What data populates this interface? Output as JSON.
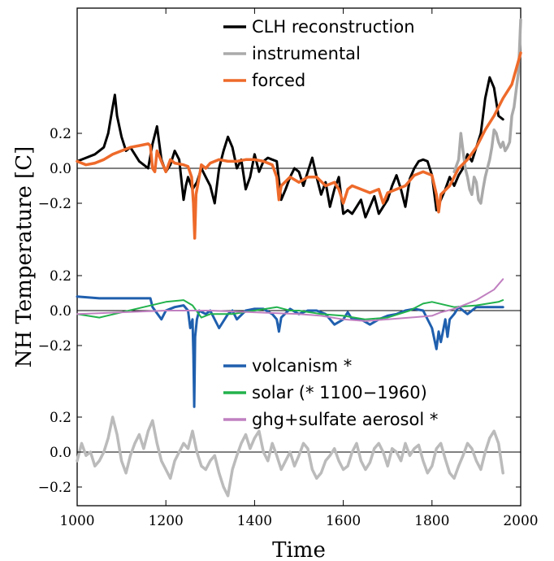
{
  "chart_data": {
    "type": "line",
    "xlabel": "Time",
    "ylabel": "NH Temperature [C]",
    "xlim": [
      1000,
      2000
    ],
    "xticks": [
      1000,
      1200,
      1400,
      1600,
      1800,
      2000
    ],
    "panels": [
      {
        "name": "top",
        "ylim": [
          -0.35,
          0.65
        ],
        "yticks": [
          0.2,
          0.0,
          -0.2
        ],
        "ytick_labels": [
          "0.2",
          "0.0",
          "−0.2"
        ],
        "legend": {
          "position": "top-center"
        },
        "series": [
          {
            "name": "CLH reconstruction",
            "color": "#000000",
            "width": 3,
            "x": [
              1000,
              1020,
              1040,
              1060,
              1070,
              1080,
              1085,
              1090,
              1100,
              1110,
              1120,
              1140,
              1150,
              1160,
              1170,
              1180,
              1190,
              1200,
              1210,
              1220,
              1230,
              1240,
              1245,
              1250,
              1260,
              1270,
              1280,
              1290,
              1300,
              1310,
              1320,
              1330,
              1340,
              1350,
              1360,
              1370,
              1380,
              1390,
              1400,
              1410,
              1420,
              1430,
              1440,
              1450,
              1460,
              1470,
              1480,
              1490,
              1500,
              1510,
              1520,
              1530,
              1540,
              1550,
              1560,
              1570,
              1580,
              1590,
              1600,
              1610,
              1620,
              1630,
              1640,
              1650,
              1660,
              1670,
              1680,
              1690,
              1700,
              1710,
              1720,
              1730,
              1740,
              1750,
              1760,
              1770,
              1780,
              1790,
              1800,
              1810,
              1820,
              1830,
              1840,
              1850,
              1860,
              1870,
              1880,
              1890,
              1900,
              1910,
              1920,
              1930,
              1940,
              1950,
              1960
            ],
            "y": [
              0.04,
              0.06,
              0.08,
              0.12,
              0.2,
              0.35,
              0.42,
              0.3,
              0.18,
              0.1,
              0.12,
              0.04,
              0.02,
              0.0,
              0.14,
              0.24,
              0.05,
              -0.02,
              0.02,
              0.1,
              0.05,
              -0.18,
              -0.1,
              -0.05,
              -0.12,
              -0.08,
              0.0,
              -0.05,
              -0.1,
              -0.2,
              0.0,
              0.1,
              0.18,
              0.12,
              0.0,
              0.05,
              -0.12,
              -0.05,
              0.08,
              -0.02,
              0.04,
              0.06,
              0.05,
              0.04,
              -0.18,
              -0.12,
              -0.05,
              0.0,
              -0.02,
              -0.1,
              -0.02,
              0.06,
              -0.05,
              -0.15,
              -0.08,
              -0.22,
              -0.12,
              -0.05,
              -0.26,
              -0.24,
              -0.26,
              -0.22,
              -0.18,
              -0.28,
              -0.22,
              -0.16,
              -0.26,
              -0.22,
              -0.18,
              -0.1,
              -0.04,
              -0.12,
              -0.22,
              -0.06,
              0.0,
              0.04,
              0.05,
              0.04,
              -0.04,
              -0.24,
              -0.18,
              -0.12,
              -0.05,
              -0.1,
              -0.04,
              0.0,
              0.08,
              0.04,
              0.12,
              0.2,
              0.4,
              0.52,
              0.46,
              0.3,
              0.28
            ]
          },
          {
            "name": "instrumental",
            "color": "#aaaaaa",
            "width": 3.5,
            "x": [
              1850,
              1860,
              1865,
              1870,
              1875,
              1880,
              1885,
              1890,
              1895,
              1900,
              1905,
              1910,
              1915,
              1920,
              1925,
              1930,
              1935,
              1940,
              1945,
              1950,
              1955,
              1960,
              1965,
              1970,
              1975,
              1980,
              1985,
              1990,
              1995,
              2000
            ],
            "y": [
              -0.02,
              0.05,
              0.2,
              0.1,
              0.0,
              -0.05,
              -0.12,
              -0.15,
              -0.05,
              -0.08,
              -0.18,
              -0.2,
              -0.12,
              -0.05,
              0.0,
              0.05,
              0.12,
              0.22,
              0.2,
              0.15,
              0.12,
              0.15,
              0.1,
              0.12,
              0.15,
              0.3,
              0.35,
              0.45,
              0.55,
              0.85
            ]
          },
          {
            "name": "forced",
            "color": "#ee6a2a",
            "width": 3.5,
            "x": [
              1000,
              1020,
              1040,
              1060,
              1080,
              1100,
              1120,
              1140,
              1160,
              1165,
              1170,
              1175,
              1180,
              1190,
              1200,
              1210,
              1220,
              1240,
              1250,
              1258,
              1262,
              1265,
              1268,
              1275,
              1280,
              1290,
              1300,
              1320,
              1340,
              1360,
              1380,
              1400,
              1420,
              1440,
              1450,
              1455,
              1460,
              1480,
              1500,
              1520,
              1540,
              1560,
              1580,
              1590,
              1600,
              1610,
              1620,
              1640,
              1660,
              1680,
              1690,
              1700,
              1720,
              1740,
              1760,
              1780,
              1800,
              1810,
              1815,
              1820,
              1840,
              1860,
              1880,
              1900,
              1920,
              1940,
              1960,
              1980,
              2000
            ],
            "y": [
              0.04,
              0.02,
              0.03,
              0.05,
              0.08,
              0.1,
              0.12,
              0.13,
              0.14,
              0.13,
              0.0,
              -0.02,
              0.1,
              0.04,
              -0.02,
              0.05,
              0.03,
              0.02,
              0.01,
              -0.05,
              -0.2,
              -0.4,
              -0.15,
              -0.05,
              0.02,
              0.0,
              0.03,
              0.05,
              0.04,
              0.04,
              0.05,
              0.05,
              0.04,
              0.02,
              -0.05,
              -0.18,
              -0.1,
              -0.05,
              -0.08,
              -0.05,
              -0.05,
              -0.1,
              -0.08,
              -0.12,
              -0.2,
              -0.12,
              -0.1,
              -0.12,
              -0.14,
              -0.12,
              -0.2,
              -0.14,
              -0.12,
              -0.1,
              -0.04,
              -0.02,
              -0.04,
              -0.15,
              -0.25,
              -0.15,
              -0.1,
              0.0,
              0.05,
              0.12,
              0.22,
              0.3,
              0.4,
              0.48,
              0.66
            ]
          }
        ]
      },
      {
        "name": "middle",
        "ylim": [
          -0.35,
          0.25
        ],
        "yticks": [
          0.2,
          0.0,
          -0.2
        ],
        "ytick_labels": [
          "0.2",
          "0.0",
          "−0.2"
        ],
        "legend": {
          "position": "bottom-center"
        },
        "series": [
          {
            "name": "volcanism *",
            "color": "#1f5fae",
            "width": 3,
            "x": [
              1000,
              1050,
              1100,
              1150,
              1165,
              1170,
              1190,
              1200,
              1220,
              1240,
              1250,
              1255,
              1260,
              1262,
              1264,
              1266,
              1270,
              1275,
              1290,
              1300,
              1320,
              1340,
              1350,
              1360,
              1380,
              1400,
              1420,
              1440,
              1450,
              1455,
              1460,
              1480,
              1500,
              1520,
              1540,
              1560,
              1580,
              1600,
              1610,
              1620,
              1640,
              1660,
              1680,
              1700,
              1720,
              1740,
              1760,
              1780,
              1800,
              1810,
              1815,
              1820,
              1830,
              1835,
              1840,
              1850,
              1860,
              1880,
              1900,
              1920,
              1940,
              1960
            ],
            "y": [
              0.08,
              0.07,
              0.07,
              0.07,
              0.07,
              0.02,
              -0.05,
              0.0,
              0.02,
              0.03,
              0.0,
              -0.1,
              -0.05,
              -0.25,
              -0.55,
              -0.15,
              -0.05,
              0.0,
              -0.02,
              0.0,
              -0.1,
              -0.02,
              0.0,
              -0.05,
              0.0,
              0.01,
              0.01,
              -0.02,
              -0.05,
              -0.12,
              -0.04,
              0.01,
              -0.02,
              0.0,
              0.0,
              -0.02,
              -0.08,
              -0.05,
              -0.01,
              -0.05,
              -0.05,
              -0.08,
              -0.05,
              -0.03,
              -0.02,
              0.0,
              0.01,
              0.0,
              -0.1,
              -0.22,
              -0.12,
              -0.18,
              -0.05,
              -0.15,
              -0.05,
              -0.02,
              0.02,
              -0.02,
              0.02,
              0.02,
              0.02,
              0.02
            ]
          },
          {
            "name": "solar (* 1100−1960)",
            "color": "#22b24c",
            "width": 2,
            "x": [
              1000,
              1050,
              1100,
              1150,
              1200,
              1240,
              1260,
              1280,
              1300,
              1350,
              1400,
              1450,
              1480,
              1500,
              1550,
              1600,
              1650,
              1700,
              1750,
              1780,
              1800,
              1850,
              1900,
              1950,
              1960
            ],
            "y": [
              -0.02,
              -0.04,
              -0.01,
              0.02,
              0.05,
              0.06,
              0.03,
              -0.04,
              -0.02,
              -0.02,
              0.0,
              0.02,
              0.0,
              0.0,
              -0.02,
              -0.03,
              -0.05,
              -0.04,
              0.0,
              0.04,
              0.05,
              0.02,
              0.03,
              0.05,
              0.06
            ]
          },
          {
            "name": "ghg+sulfate aerosol *",
            "color": "#c080c0",
            "width": 2,
            "x": [
              1000,
              1100,
              1200,
              1300,
              1400,
              1500,
              1550,
              1600,
              1650,
              1700,
              1750,
              1800,
              1820,
              1850,
              1880,
              1900,
              1920,
              1940,
              1960
            ],
            "y": [
              -0.02,
              -0.01,
              0.0,
              0.0,
              -0.01,
              -0.02,
              -0.03,
              -0.05,
              -0.06,
              -0.05,
              -0.04,
              -0.03,
              -0.01,
              0.01,
              0.04,
              0.06,
              0.09,
              0.12,
              0.18
            ]
          }
        ]
      },
      {
        "name": "bottom",
        "ylim": [
          -0.3,
          0.2
        ],
        "yticks": [
          0.2,
          0.0,
          -0.2
        ],
        "ytick_labels": [
          "0.2",
          "0.0",
          "−0.2"
        ],
        "series": [
          {
            "name": "",
            "color": "#bbbbbb",
            "width": 3.5,
            "x": [
              1000,
              1010,
              1020,
              1030,
              1040,
              1050,
              1060,
              1070,
              1080,
              1090,
              1100,
              1110,
              1120,
              1130,
              1140,
              1150,
              1160,
              1170,
              1180,
              1190,
              1200,
              1210,
              1220,
              1230,
              1240,
              1250,
              1260,
              1270,
              1280,
              1290,
              1300,
              1310,
              1320,
              1330,
              1340,
              1350,
              1360,
              1370,
              1380,
              1390,
              1400,
              1410,
              1420,
              1430,
              1440,
              1450,
              1460,
              1470,
              1480,
              1490,
              1500,
              1510,
              1520,
              1530,
              1540,
              1550,
              1560,
              1570,
              1580,
              1590,
              1600,
              1610,
              1620,
              1630,
              1640,
              1650,
              1660,
              1670,
              1680,
              1690,
              1700,
              1710,
              1720,
              1730,
              1740,
              1750,
              1760,
              1770,
              1780,
              1790,
              1800,
              1810,
              1820,
              1830,
              1840,
              1850,
              1860,
              1870,
              1880,
              1890,
              1900,
              1910,
              1920,
              1930,
              1940,
              1950,
              1960
            ],
            "y": [
              -0.05,
              0.05,
              -0.02,
              0.0,
              -0.08,
              -0.05,
              0.0,
              0.08,
              0.2,
              0.1,
              -0.05,
              -0.12,
              -0.02,
              0.05,
              0.1,
              0.02,
              0.12,
              0.18,
              0.05,
              -0.05,
              -0.1,
              -0.15,
              -0.05,
              0.0,
              0.05,
              0.02,
              0.12,
              0.0,
              -0.08,
              -0.1,
              -0.05,
              -0.02,
              -0.12,
              -0.2,
              -0.25,
              -0.1,
              -0.02,
              0.05,
              0.1,
              0.02,
              0.08,
              0.12,
              0.0,
              -0.05,
              0.05,
              -0.02,
              -0.1,
              -0.05,
              0.0,
              -0.08,
              -0.02,
              0.05,
              0.02,
              -0.1,
              -0.15,
              -0.12,
              -0.05,
              -0.02,
              0.02,
              -0.05,
              -0.1,
              -0.08,
              0.0,
              0.05,
              -0.05,
              -0.1,
              -0.06,
              0.02,
              0.05,
              0.0,
              -0.08,
              0.02,
              0.0,
              -0.05,
              0.05,
              -0.02,
              0.02,
              0.04,
              -0.05,
              -0.12,
              -0.08,
              0.02,
              0.05,
              -0.04,
              -0.12,
              -0.15,
              -0.08,
              -0.02,
              0.05,
              0.02,
              -0.05,
              -0.1,
              0.0,
              0.08,
              0.12,
              0.05,
              -0.12
            ]
          }
        ]
      }
    ]
  }
}
